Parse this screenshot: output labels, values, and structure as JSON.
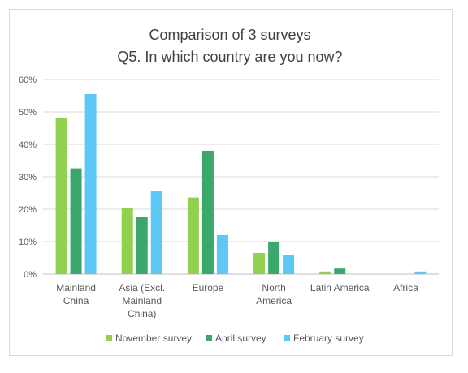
{
  "chart_data": {
    "type": "bar",
    "title": [
      "Comparison of 3 surveys",
      "Q5. In which country are you now?"
    ],
    "categories": [
      [
        "Mainland",
        "China"
      ],
      [
        "Asia (Excl.",
        "Mainland",
        "China)"
      ],
      [
        "Europe"
      ],
      [
        "North",
        "America"
      ],
      [
        "Latin America"
      ],
      [
        "Africa"
      ]
    ],
    "series": [
      {
        "name": "November survey",
        "color": "#92d050",
        "values": [
          48.2,
          20.3,
          23.6,
          6.5,
          0.8,
          0
        ]
      },
      {
        "name": "April survey",
        "color": "#3aa76d",
        "values": [
          32.6,
          17.7,
          38.0,
          9.8,
          1.7,
          0
        ]
      },
      {
        "name": "February survey",
        "color": "#5bc8f5",
        "values": [
          55.5,
          25.5,
          12.0,
          6.0,
          0,
          0.8
        ]
      }
    ],
    "ylim": [
      0,
      60
    ],
    "yticks": [
      "0%",
      "10%",
      "20%",
      "30%",
      "40%",
      "50%",
      "60%"
    ],
    "grid": true,
    "legend": "bottom"
  }
}
